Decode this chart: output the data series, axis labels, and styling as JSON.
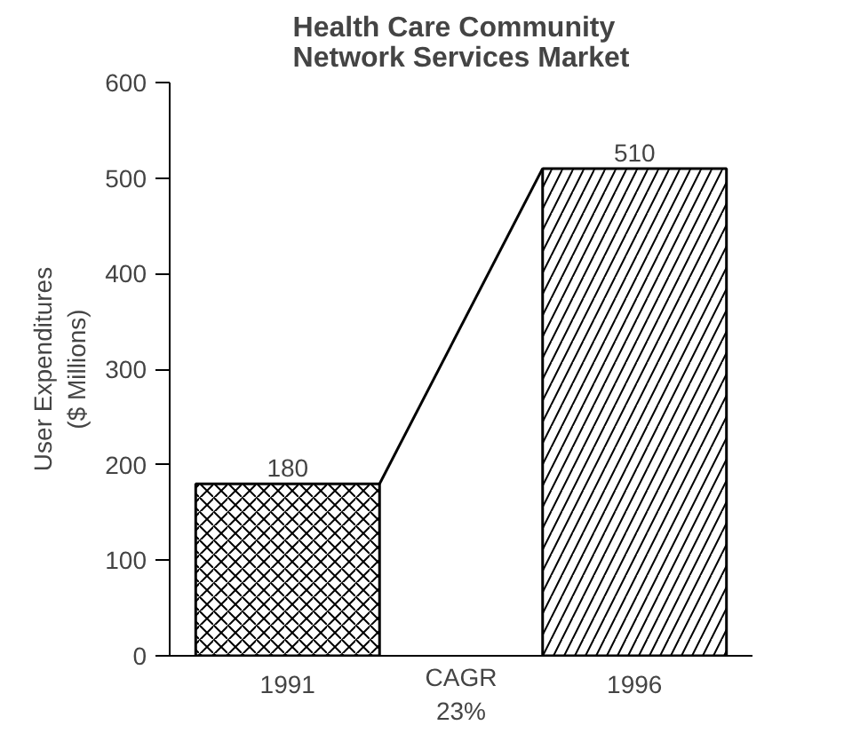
{
  "chart_data": {
    "type": "bar",
    "title": "Health Care Community\nNetwork Services Market",
    "ylabel": "User Expenditures\n($ Millions)",
    "categories": [
      "1991",
      "1996"
    ],
    "values": [
      180,
      510
    ],
    "color": "#000000",
    "ylim": [
      0,
      600
    ],
    "yticks": [
      0,
      100,
      200,
      300,
      400,
      500,
      600
    ],
    "data_labels": true,
    "grid": false,
    "annotations": [
      "CAGR\n23%"
    ]
  }
}
